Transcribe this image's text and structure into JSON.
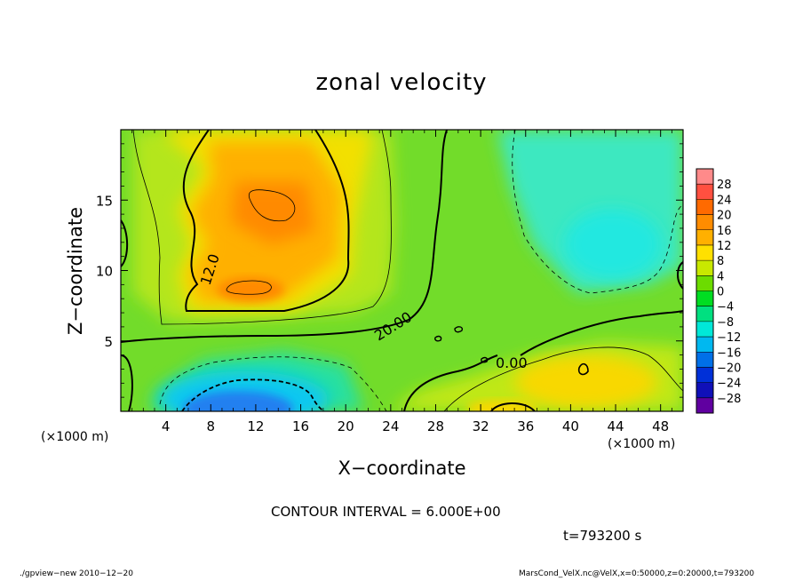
{
  "chart_data": {
    "type": "heatmap",
    "title": "zonal velocity",
    "xlabel": "X−coordinate",
    "ylabel": "Z−coordinate",
    "x_unit_left": "(×1000 m)",
    "x_unit_right": "(×1000 m)",
    "xlim": [
      0,
      50
    ],
    "ylim": [
      0,
      20
    ],
    "x_ticks": [
      4,
      8,
      12,
      16,
      20,
      24,
      28,
      32,
      36,
      40,
      44,
      48
    ],
    "y_ticks": [
      5,
      10,
      15
    ],
    "colorbar": {
      "labels": [
        "28",
        "24",
        "20",
        "16",
        "12",
        "8",
        "4",
        "0",
        "−4",
        "−8",
        "−12",
        "−16",
        "−20",
        "−24",
        "−28"
      ],
      "colors": [
        "#ff8a8a",
        "#ff5040",
        "#ff6a00",
        "#ff8c00",
        "#ffb000",
        "#ffe000",
        "#c8e800",
        "#6cdc00",
        "#00dd22",
        "#00e080",
        "#00e8d8",
        "#00b8f0",
        "#0070e8",
        "#0030d8",
        "#1010b8",
        "#6000a0"
      ]
    },
    "contour_labels": [
      "12.0",
      "20.00",
      "0.00"
    ],
    "contour_interval": "CONTOUR INTERVAL = 6.000E+00",
    "time": "t=793200 s"
  },
  "footer": {
    "left": "./gpview−new  2010−12−20",
    "right": "MarsCond_VelX.nc@VelX,x=0:50000,z=0:20000,t=793200"
  },
  "colors": {
    "green_bg": "#6ade2c",
    "orange_core": "#ff9a10",
    "cyan_region": "#2ee8c8",
    "blue_core": "#2080f0"
  }
}
